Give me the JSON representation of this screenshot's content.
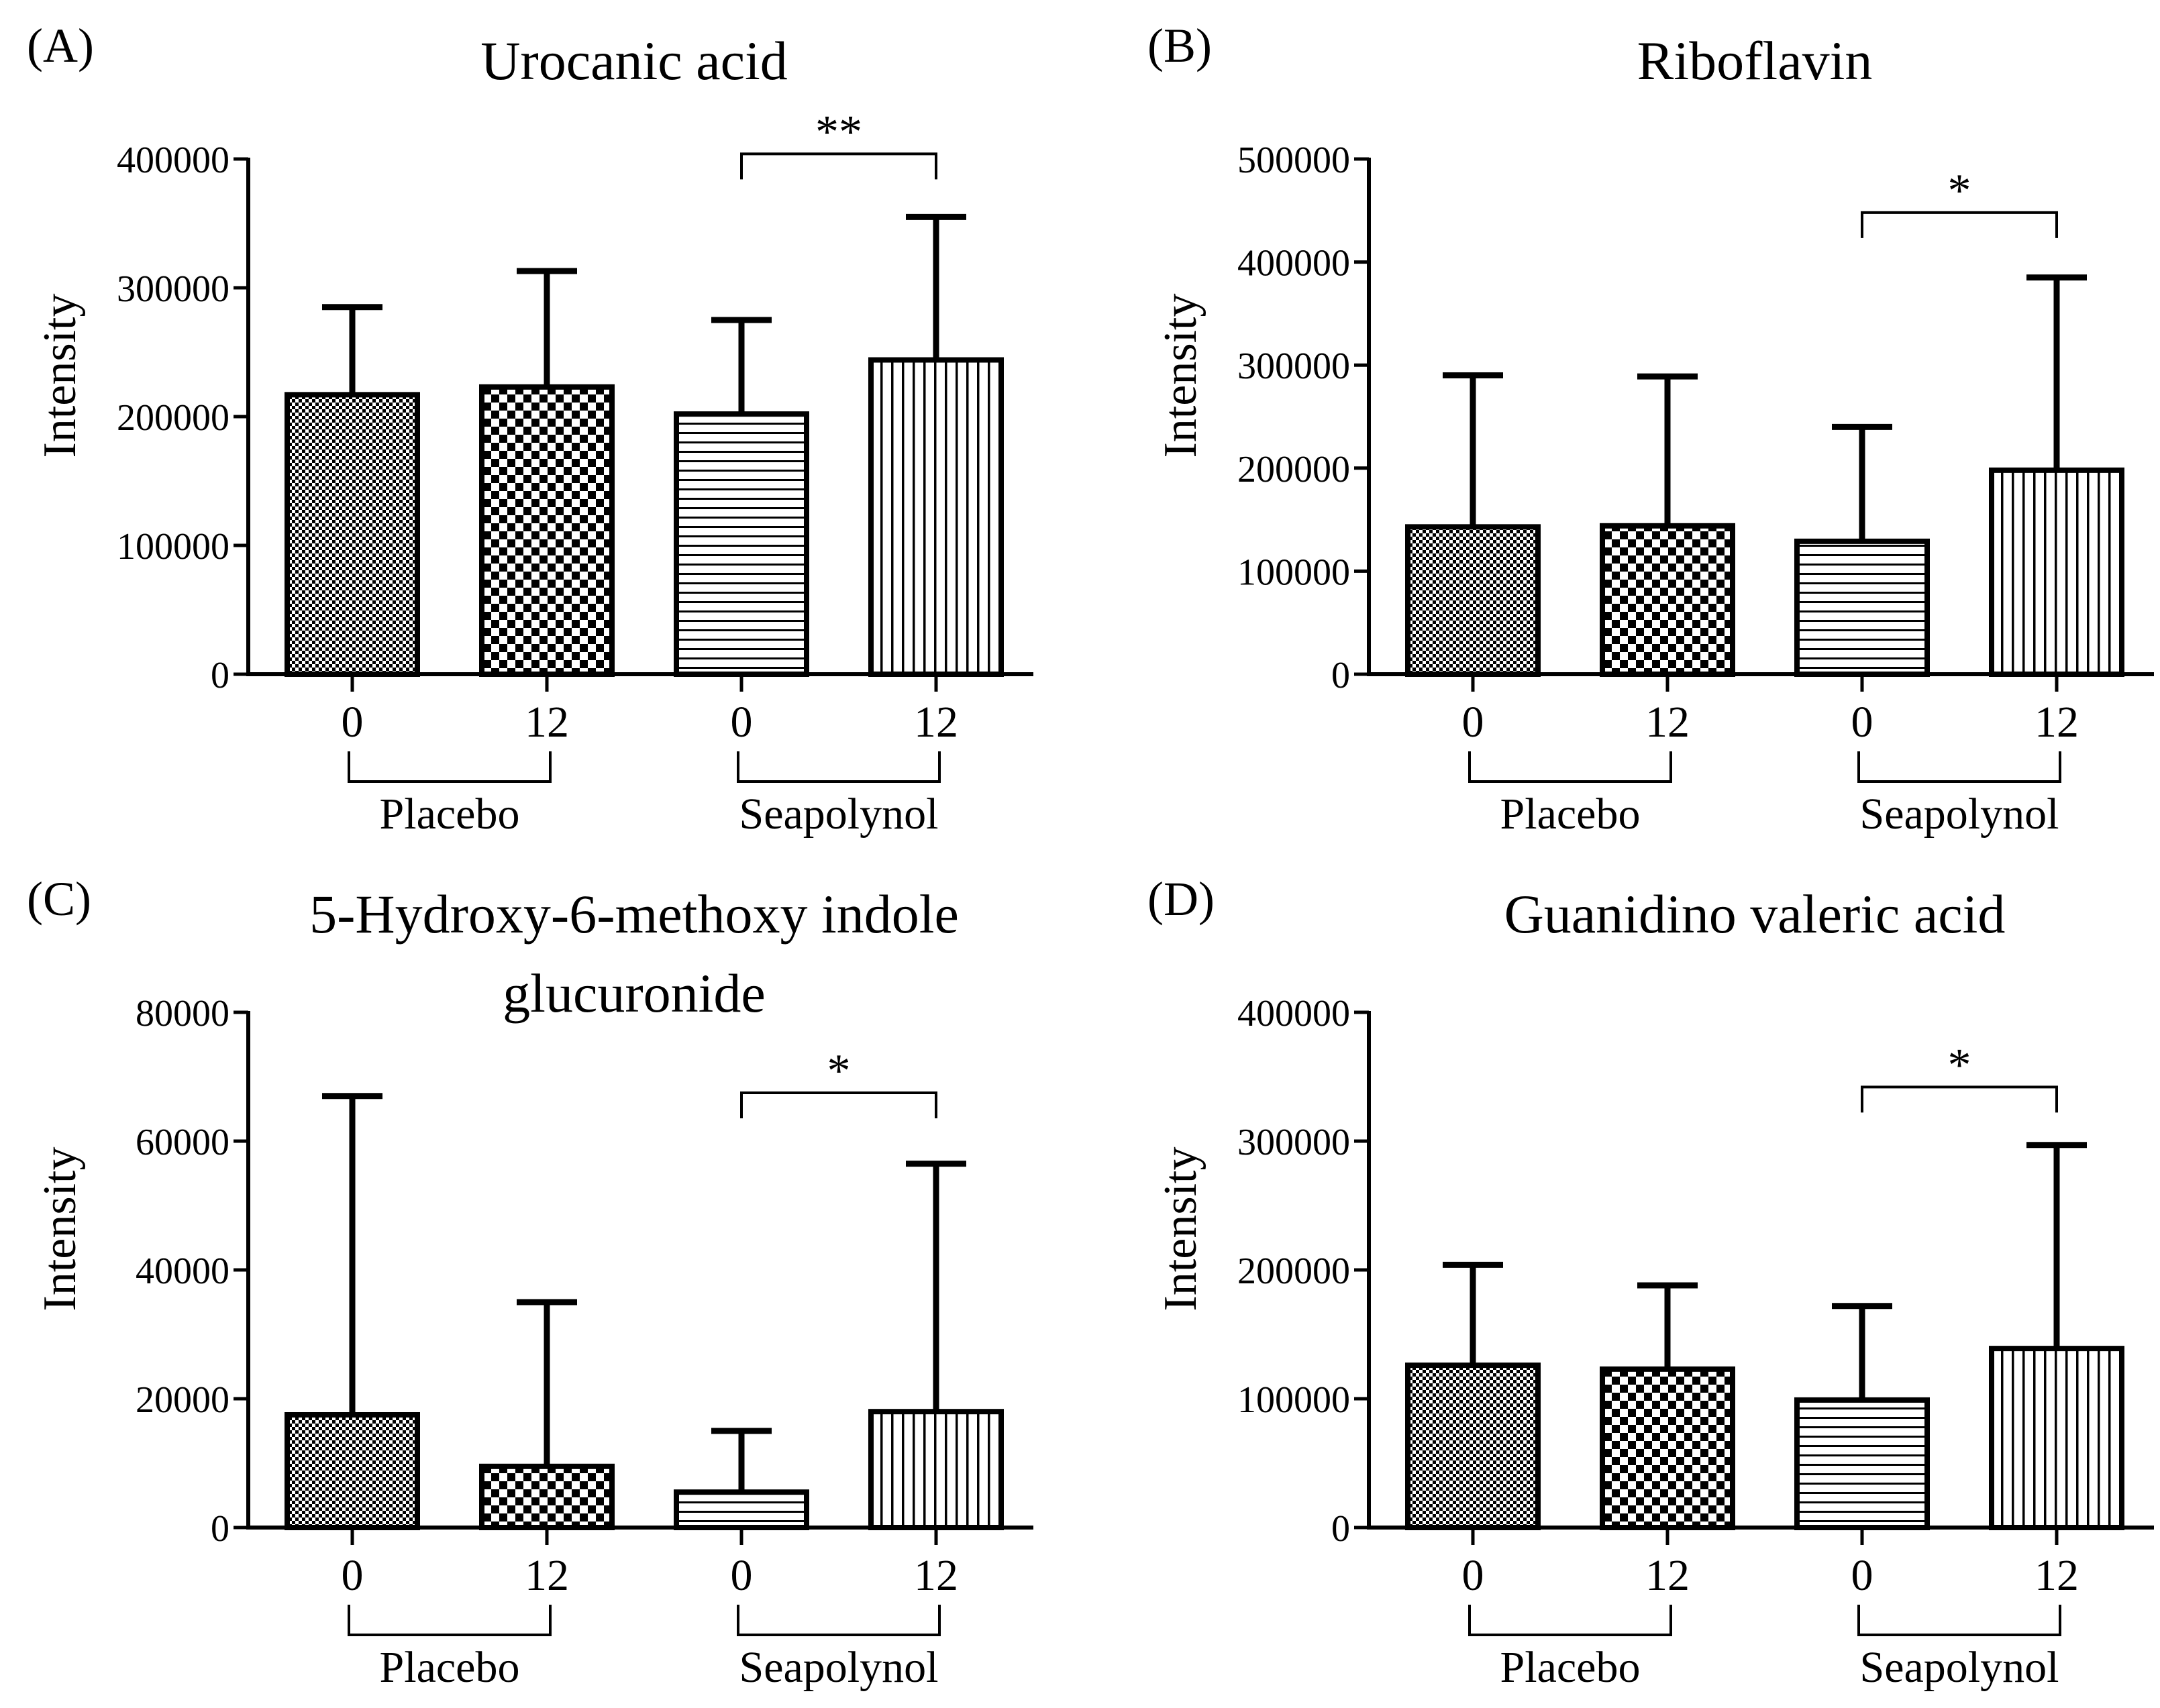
{
  "figure": {
    "panels_order": [
      "A",
      "B",
      "C",
      "D"
    ]
  },
  "chart_data": [
    {
      "type": "bar",
      "panel_label": "(A)",
      "title": "Urocanic acid",
      "title_lines": [
        "Urocanic acid"
      ],
      "xlabel": "",
      "ylabel": "Intensity",
      "ylim": [
        0,
        400000
      ],
      "yticks": [
        0,
        100000,
        200000,
        300000,
        400000
      ],
      "categories": [
        "0",
        "12",
        "0",
        "12"
      ],
      "groups": [
        {
          "name": "Placebo",
          "members": [
            0,
            1
          ]
        },
        {
          "name": "Seapolynol",
          "members": [
            2,
            3
          ]
        }
      ],
      "values": [
        217000,
        223000,
        202000,
        244000
      ],
      "error_upper": [
        285000,
        313000,
        275000,
        355000
      ],
      "patterns": [
        "fine-check",
        "coarse-check",
        "horizontal",
        "vertical"
      ],
      "significance": [
        {
          "from": 2,
          "to": 3,
          "label": "**",
          "bracket_y": 404000
        }
      ]
    },
    {
      "type": "bar",
      "panel_label": "(B)",
      "title": "Riboflavin",
      "title_lines": [
        "Riboflavin"
      ],
      "xlabel": "",
      "ylabel": "Intensity",
      "ylim": [
        0,
        500000
      ],
      "yticks": [
        0,
        100000,
        200000,
        300000,
        400000,
        500000
      ],
      "categories": [
        "0",
        "12",
        "0",
        "12"
      ],
      "groups": [
        {
          "name": "Placebo",
          "members": [
            0,
            1
          ]
        },
        {
          "name": "Seapolynol",
          "members": [
            2,
            3
          ]
        }
      ],
      "values": [
        143000,
        144000,
        129000,
        198000
      ],
      "error_upper": [
        290000,
        289000,
        240000,
        385000
      ],
      "patterns": [
        "fine-check",
        "coarse-check",
        "horizontal",
        "vertical"
      ],
      "significance": [
        {
          "from": 2,
          "to": 3,
          "label": "*",
          "bracket_y": 448000
        }
      ]
    },
    {
      "type": "bar",
      "panel_label": "(C)",
      "title": "5-Hydroxy-6-methoxy indole glucuronide",
      "title_lines": [
        "5-Hydroxy-6-methoxy indole",
        "glucuronide"
      ],
      "xlabel": "",
      "ylabel": "Intensity",
      "ylim": [
        0,
        80000
      ],
      "yticks": [
        0,
        20000,
        40000,
        60000,
        80000
      ],
      "categories": [
        "0",
        "12",
        "0",
        "12"
      ],
      "groups": [
        {
          "name": "Placebo",
          "members": [
            0,
            1
          ]
        },
        {
          "name": "Seapolynol",
          "members": [
            2,
            3
          ]
        }
      ],
      "values": [
        17500,
        9500,
        5500,
        18000
      ],
      "error_upper": [
        67000,
        35000,
        15000,
        56500
      ],
      "patterns": [
        "fine-check",
        "coarse-check",
        "horizontal",
        "vertical"
      ],
      "significance": [
        {
          "from": 2,
          "to": 3,
          "label": "*",
          "bracket_y": 67500
        }
      ]
    },
    {
      "type": "bar",
      "panel_label": "(D)",
      "title": "Guanidino valeric acid",
      "title_lines": [
        "Guanidino valeric acid"
      ],
      "xlabel": "",
      "ylabel": "Intensity",
      "ylim": [
        0,
        400000
      ],
      "yticks": [
        0,
        100000,
        200000,
        300000,
        400000
      ],
      "categories": [
        "0",
        "12",
        "0",
        "12"
      ],
      "groups": [
        {
          "name": "Placebo",
          "members": [
            0,
            1
          ]
        },
        {
          "name": "Seapolynol",
          "members": [
            2,
            3
          ]
        }
      ],
      "values": [
        126000,
        123000,
        99000,
        139000
      ],
      "error_upper": [
        204000,
        188000,
        172000,
        297000
      ],
      "patterns": [
        "fine-check",
        "coarse-check",
        "horizontal",
        "vertical"
      ],
      "significance": [
        {
          "from": 2,
          "to": 3,
          "label": "*",
          "bracket_y": 342000
        }
      ]
    }
  ]
}
